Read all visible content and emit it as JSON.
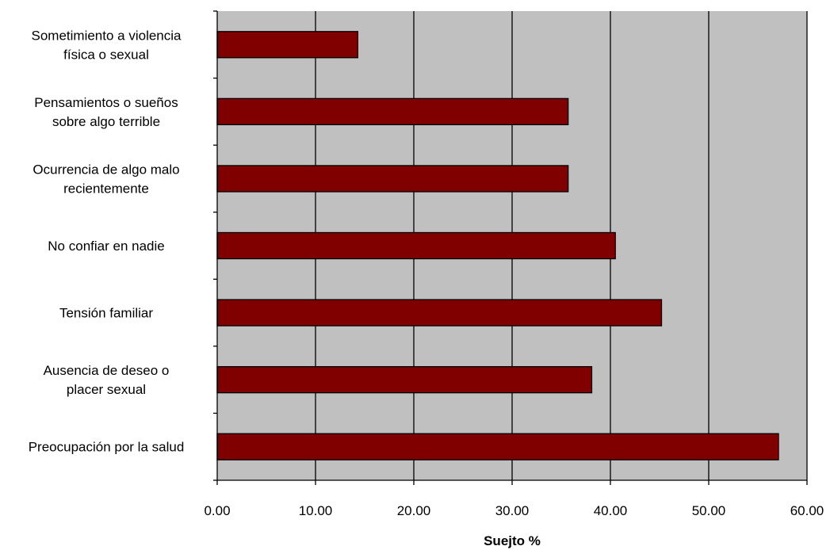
{
  "chart_data": {
    "type": "bar",
    "orientation": "horizontal",
    "categories": [
      [
        "Sometimiento a violencia",
        "física o sexual"
      ],
      [
        "Pensamientos o sueños",
        "sobre algo terrible"
      ],
      [
        "Ocurrencia de algo malo",
        "recientemente"
      ],
      [
        "No confiar en nadie"
      ],
      [
        "Tensión familiar"
      ],
      [
        "Ausencia de deseo o",
        "placer sexual"
      ],
      [
        "Preocupación por la salud"
      ]
    ],
    "values": [
      14.3,
      35.7,
      35.7,
      40.5,
      45.2,
      38.1,
      57.1
    ],
    "xlabel": "Suejto %",
    "ylabel": "",
    "xlim": [
      0,
      60
    ],
    "ticks": [
      "0.00",
      "10.00",
      "20.00",
      "30.00",
      "40.00",
      "50.00",
      "60.00"
    ],
    "grid": "vertical",
    "legend": "none",
    "colors": {
      "bar": "#800000",
      "plot_background": "#c0c0c0",
      "gridline": "#000000"
    }
  }
}
